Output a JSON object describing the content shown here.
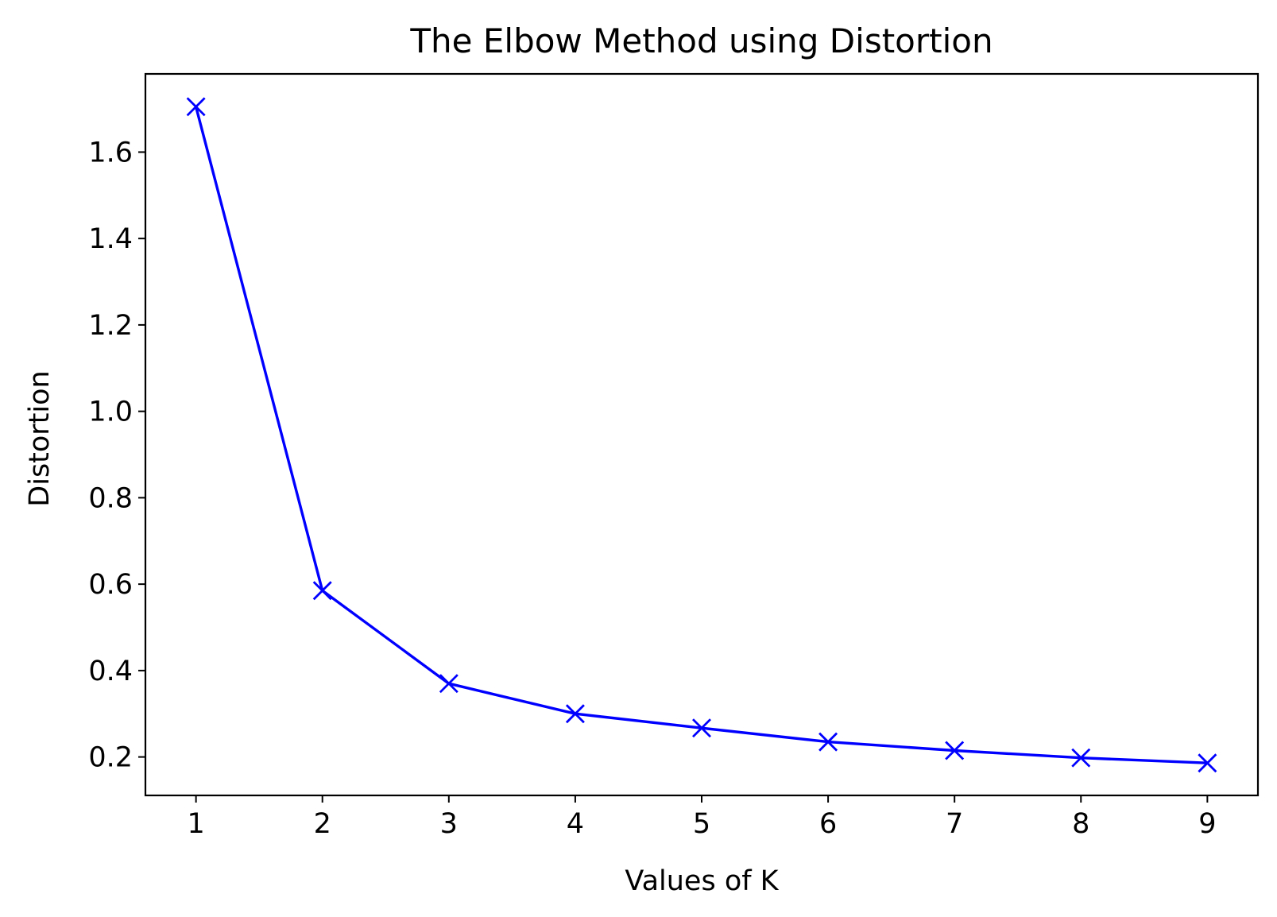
{
  "chart_data": {
    "type": "line",
    "title": "The Elbow Method using Distortion",
    "xlabel": "Values of K",
    "ylabel": "Distortion",
    "x": [
      1,
      2,
      3,
      4,
      5,
      6,
      7,
      8,
      9
    ],
    "series": [
      {
        "values": [
          1.705,
          0.585,
          0.37,
          0.3,
          0.267,
          0.235,
          0.215,
          0.198,
          0.186
        ],
        "color": "#0000ff",
        "marker": "x"
      }
    ],
    "xticks": [
      1,
      2,
      3,
      4,
      5,
      6,
      7,
      8,
      9
    ],
    "xtick_labels": [
      "1",
      "2",
      "3",
      "4",
      "5",
      "6",
      "7",
      "8",
      "9"
    ],
    "yticks": [
      0.2,
      0.4,
      0.6,
      0.8,
      1.0,
      1.2,
      1.4,
      1.6
    ],
    "ytick_labels": [
      "0.2",
      "0.4",
      "0.6",
      "0.8",
      "1.0",
      "1.2",
      "1.4",
      "1.6"
    ],
    "xlim": [
      0.6,
      9.4
    ],
    "ylim": [
      0.111,
      1.781
    ],
    "grid": false,
    "legend": "none"
  }
}
